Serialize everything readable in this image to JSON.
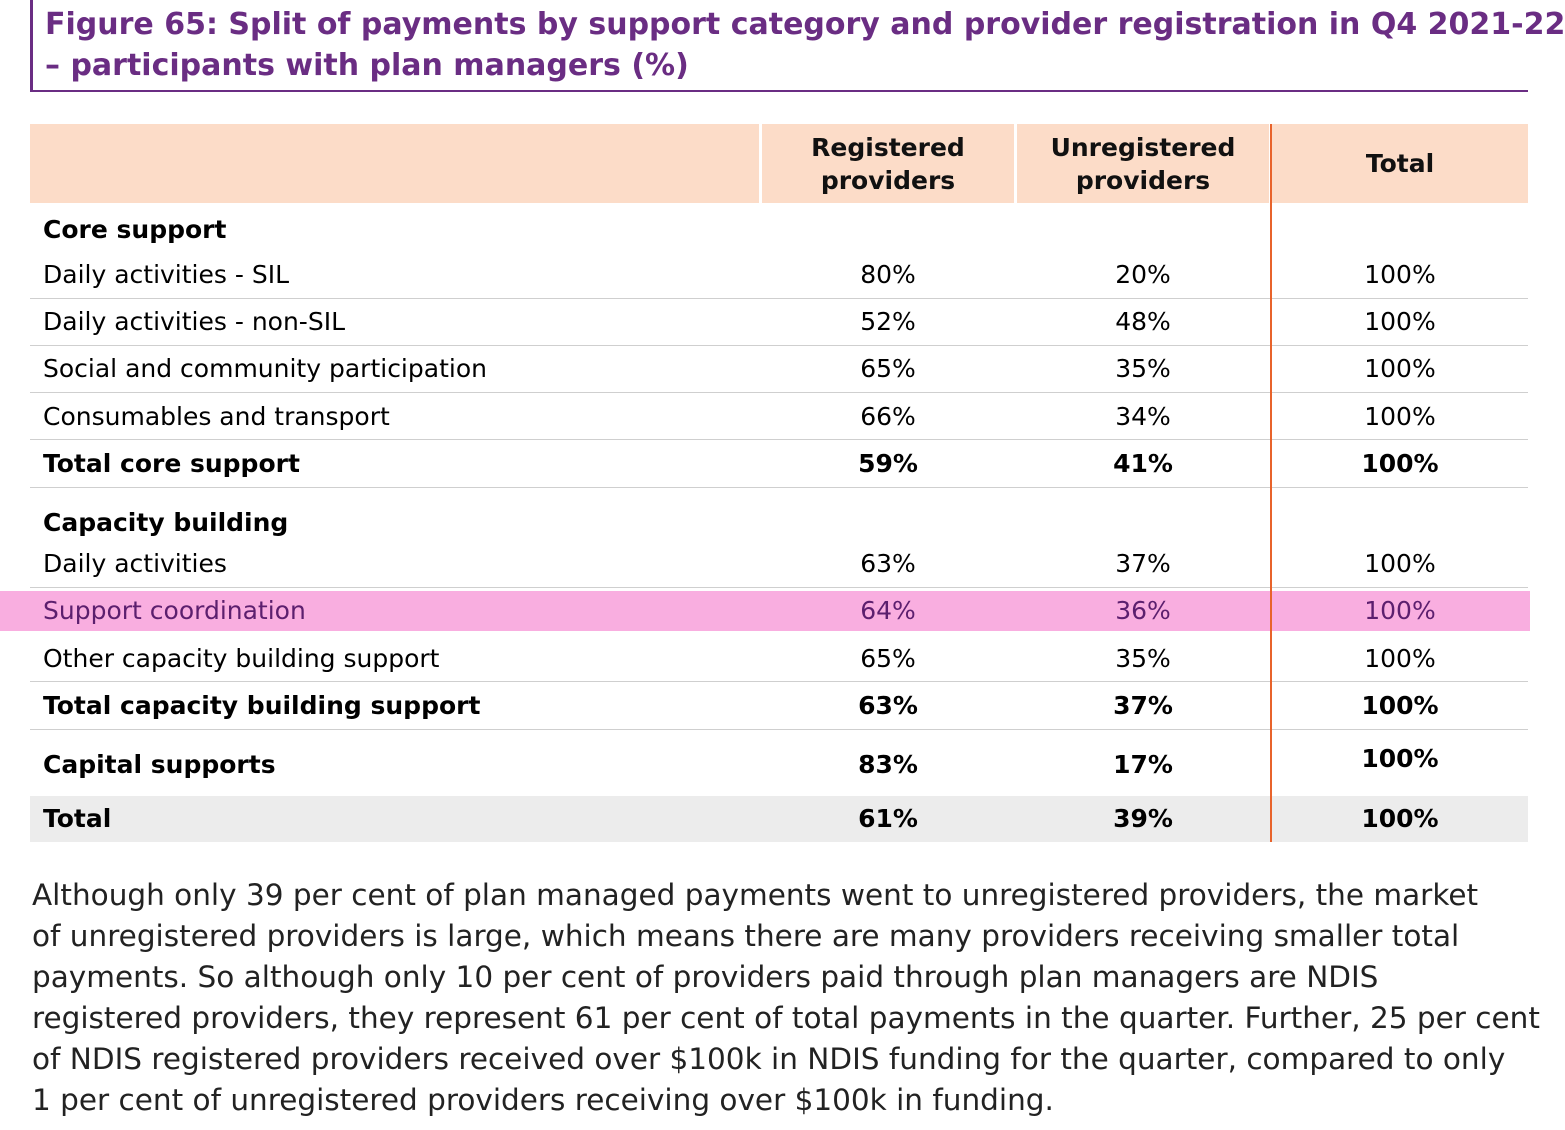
{
  "title": {
    "line1": "Figure 65: Split of payments by support category and provider registration in Q4 2021-22",
    "line2": "– participants with plan managers (%)"
  },
  "table": {
    "headers": {
      "col1": [
        "Registered",
        "providers"
      ],
      "col2": [
        "Unregistered",
        "providers"
      ],
      "col3": "Total"
    },
    "sections": {
      "core": {
        "heading": "Core support",
        "rows": [
          {
            "label": "Daily activities - SIL",
            "registered": "80%",
            "unregistered": "20%",
            "total": "100%"
          },
          {
            "label": "Daily activities - non-SIL",
            "registered": "52%",
            "unregistered": "48%",
            "total": "100%"
          },
          {
            "label": "Social and community participation",
            "registered": "65%",
            "unregistered": "35%",
            "total": "100%"
          },
          {
            "label": "Consumables and transport",
            "registered": "66%",
            "unregistered": "34%",
            "total": "100%"
          }
        ],
        "total": {
          "label": "Total core support",
          "registered": "59%",
          "unregistered": "41%",
          "total": "100%"
        }
      },
      "capacity": {
        "heading": "Capacity building",
        "rows": [
          {
            "label": "Daily activities",
            "registered": "63%",
            "unregistered": "37%",
            "total": "100%"
          },
          {
            "label": "Support coordination",
            "registered": "64%",
            "unregistered": "36%",
            "total": "100%",
            "highlighted": true
          },
          {
            "label": "Other capacity building support",
            "registered": "65%",
            "unregistered": "35%",
            "total": "100%"
          }
        ],
        "total": {
          "label": "Total capacity building support",
          "registered": "63%",
          "unregistered": "37%",
          "total": "100%"
        }
      },
      "capital": {
        "label": "Capital supports",
        "registered": "83%",
        "unregistered": "17%",
        "total": "100%"
      },
      "grand_total": {
        "label": "Total",
        "registered": "61%",
        "unregistered": "39%",
        "total": "100%"
      }
    }
  },
  "paragraph": [
    "Although only 39 per cent of plan managed payments went to unregistered providers, the market",
    "of unregistered providers is large, which means there are many providers receiving smaller total",
    "payments. So although only 10 per cent of providers paid through plan managers are NDIS",
    "registered providers, they represent 61 per cent of total payments in the quarter. Further, 25 per cent",
    "of NDIS registered providers received over $100k in NDIS funding for the quarter, compared to only",
    "1 per cent of unregistered providers receiving over $100k in funding."
  ],
  "colors": {
    "title": "#6a2d83",
    "header_bg": "#fcdcc8",
    "highlight_bg": "#f9aee0",
    "total_bg": "#ececec",
    "divider": "#e8632b"
  }
}
